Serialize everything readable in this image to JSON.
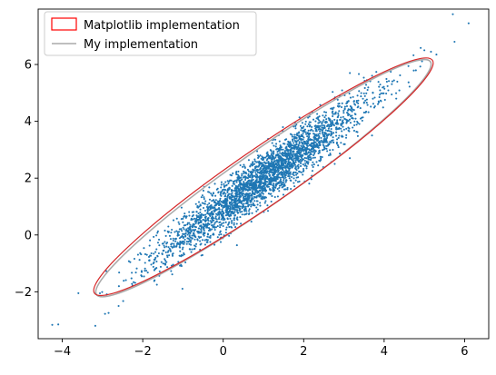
{
  "chart_data": {
    "type": "scatter",
    "title": "",
    "xlabel": "",
    "ylabel": "",
    "xlim": [
      -4.6,
      6.6
    ],
    "ylim": [
      -3.65,
      7.95
    ],
    "xticks": [
      -4,
      -2,
      0,
      2,
      4,
      6
    ],
    "yticks": [
      -2,
      0,
      2,
      4,
      6
    ],
    "xtick_labels": [
      "−4",
      "−2",
      "0",
      "2",
      "4",
      "6"
    ],
    "ytick_labels": [
      "−2",
      "0",
      "2",
      "4",
      "6"
    ],
    "grid": false,
    "legend_position": "top-left",
    "points": {
      "color": "#1f77b4",
      "count": 3000,
      "mean": [
        1.0,
        2.0
      ],
      "sd": [
        1.3,
        1.4
      ],
      "correlation": 0.95,
      "outliers": [
        [
          -4.1,
          -3.15
        ],
        [
          6.1,
          7.45
        ],
        [
          5.75,
          6.8
        ],
        [
          5.3,
          6.35
        ],
        [
          -3.6,
          -2.05
        ],
        [
          -2.6,
          -2.5
        ],
        [
          5.0,
          6.5
        ]
      ]
    },
    "ellipses": [
      {
        "name": "Matplotlib implementation",
        "color": "#ff0000",
        "line_color": "#d62728",
        "center": [
          1.0,
          2.05
        ],
        "major_endpoints": [
          [
            -3.2,
            -2.05
          ],
          [
            5.2,
            6.15
          ]
        ],
        "minor_half_width": 0.52
      },
      {
        "name": "My implementation",
        "color": "#aaaaaa",
        "center": [
          1.02,
          2.0
        ],
        "major_endpoints": [
          [
            -3.15,
            -2.1
          ],
          [
            5.15,
            6.1
          ]
        ],
        "minor_half_width": 0.5
      }
    ],
    "legend": {
      "entries": [
        "Matplotlib implementation",
        "My implementation"
      ]
    }
  }
}
